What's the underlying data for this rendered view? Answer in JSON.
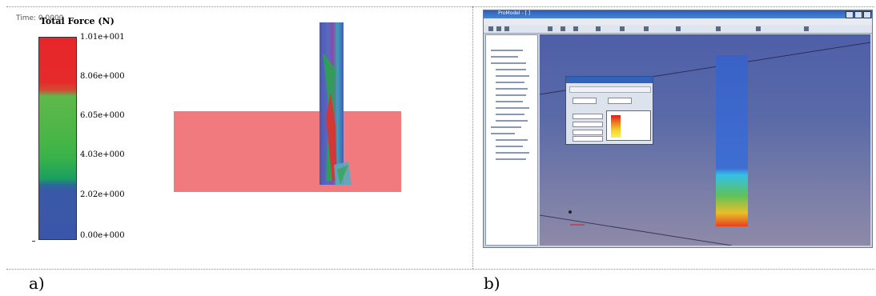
{
  "panel_a": {
    "time_label": "Time: 0.0000",
    "legend_title": "Total Force (N)",
    "ticks": [
      "1.01e+001",
      "8.06e+000",
      "6.05e+000",
      "4.03e+000",
      "2.02e+000",
      "0.00e+000"
    ],
    "colors": {
      "high": "#e8262a",
      "mid": "#48b646",
      "low": "#3a56a8",
      "body": "#f07a7e"
    }
  },
  "panel_b": {
    "window_title": "ProModel - [ ]",
    "colors": {
      "viewport": "#5a6aa8",
      "titlebar": "#2c5fb8"
    }
  },
  "captions": {
    "a": "a)",
    "b": "b)"
  }
}
